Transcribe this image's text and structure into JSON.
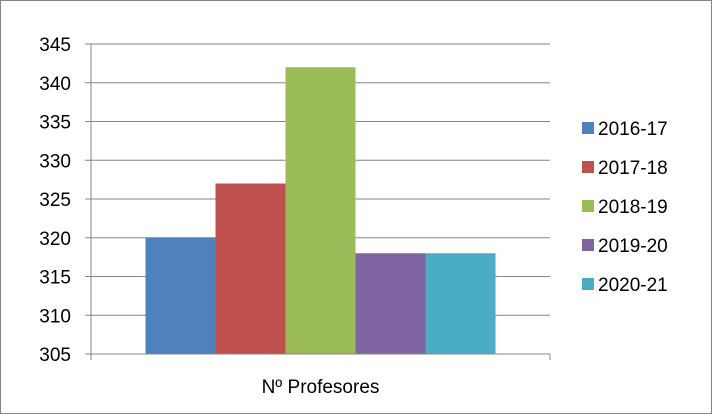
{
  "chart_data": {
    "type": "bar",
    "categories": [
      "Nº Profesores"
    ],
    "series": [
      {
        "name": "2016-17",
        "values": [
          320
        ],
        "color": "#4F81BD"
      },
      {
        "name": "2017-18",
        "values": [
          327
        ],
        "color": "#C0504D"
      },
      {
        "name": "2018-19",
        "values": [
          342
        ],
        "color": "#9BBB59"
      },
      {
        "name": "2019-20",
        "values": [
          318
        ],
        "color": "#8064A2"
      },
      {
        "name": "2020-21",
        "values": [
          318
        ],
        "color": "#4BACC6"
      }
    ],
    "y_ticks": [
      305,
      310,
      315,
      320,
      325,
      330,
      335,
      340,
      345
    ],
    "ylim": [
      305,
      345
    ],
    "grid": "horizontal",
    "legend_position": "right",
    "title": "",
    "xlabel": "",
    "ylabel": ""
  }
}
